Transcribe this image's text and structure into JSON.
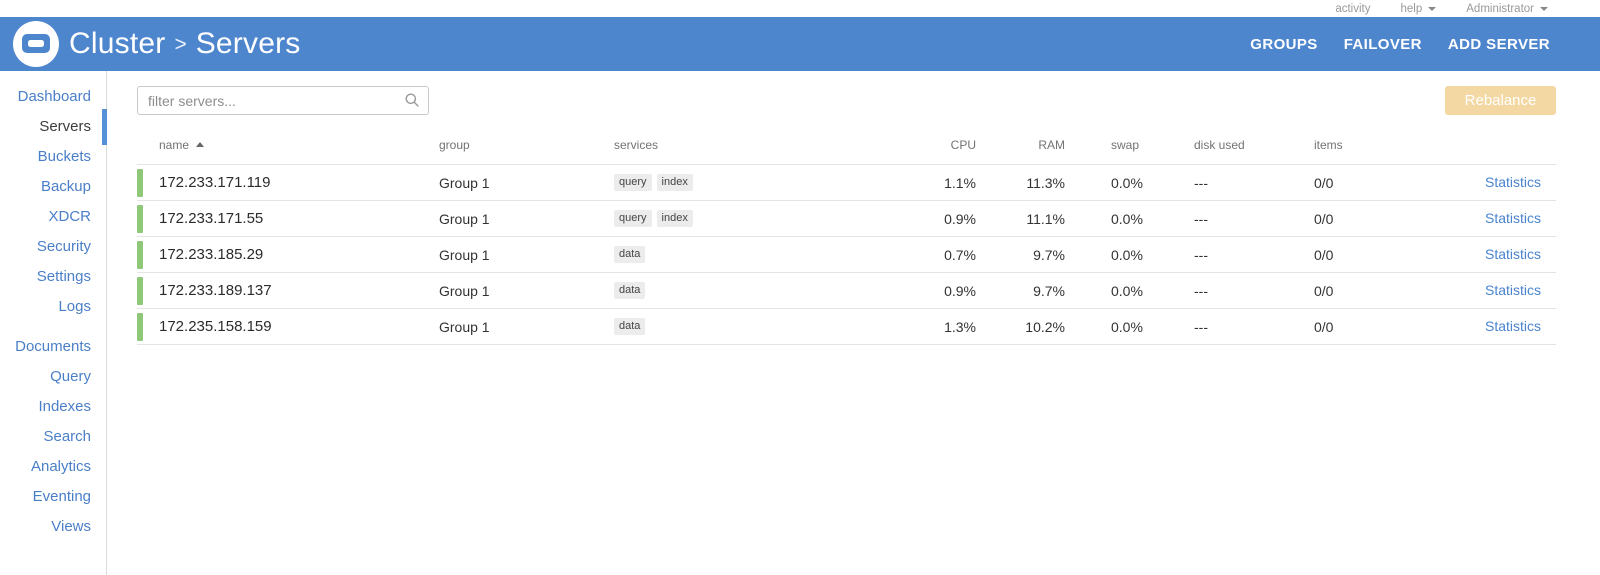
{
  "topbar": {
    "items": [
      {
        "label": "activity",
        "caret": false
      },
      {
        "label": "help",
        "caret": true
      },
      {
        "label": "Administrator",
        "caret": true
      }
    ]
  },
  "header": {
    "breadcrumb": {
      "parent": "Cluster",
      "separator": ">",
      "current": "Servers"
    },
    "actions": [
      {
        "label": "GROUPS"
      },
      {
        "label": "FAILOVER"
      },
      {
        "label": "ADD SERVER"
      }
    ]
  },
  "sidebar": {
    "primary": [
      {
        "label": "Dashboard",
        "active": false
      },
      {
        "label": "Servers",
        "active": true
      },
      {
        "label": "Buckets",
        "active": false
      },
      {
        "label": "Backup",
        "active": false
      },
      {
        "label": "XDCR",
        "active": false
      },
      {
        "label": "Security",
        "active": false
      },
      {
        "label": "Settings",
        "active": false
      },
      {
        "label": "Logs",
        "active": false
      }
    ],
    "secondary": [
      {
        "label": "Documents"
      },
      {
        "label": "Query"
      },
      {
        "label": "Indexes"
      },
      {
        "label": "Search"
      },
      {
        "label": "Analytics"
      },
      {
        "label": "Eventing"
      },
      {
        "label": "Views"
      }
    ]
  },
  "toolbar": {
    "filter_placeholder": "filter servers...",
    "rebalance_label": "Rebalance",
    "rebalance_disabled": true
  },
  "table": {
    "columns": [
      {
        "key": "name",
        "label": "name",
        "sortable": true,
        "sort": "asc"
      },
      {
        "key": "group",
        "label": "group"
      },
      {
        "key": "services",
        "label": "services"
      },
      {
        "key": "cpu",
        "label": "CPU",
        "align": "right"
      },
      {
        "key": "ram",
        "label": "RAM",
        "align": "right"
      },
      {
        "key": "swap",
        "label": "swap"
      },
      {
        "key": "disk_used",
        "label": "disk used"
      },
      {
        "key": "items",
        "label": "items"
      }
    ],
    "rows": [
      {
        "name": "172.233.171.119",
        "group": "Group 1",
        "services": [
          "query",
          "index"
        ],
        "cpu": "1.1%",
        "ram": "11.3%",
        "swap": "0.0%",
        "disk_used": "---",
        "items": "0/0",
        "link": "Statistics",
        "status": "healthy"
      },
      {
        "name": "172.233.171.55",
        "group": "Group 1",
        "services": [
          "query",
          "index"
        ],
        "cpu": "0.9%",
        "ram": "11.1%",
        "swap": "0.0%",
        "disk_used": "---",
        "items": "0/0",
        "link": "Statistics",
        "status": "healthy"
      },
      {
        "name": "172.233.185.29",
        "group": "Group 1",
        "services": [
          "data"
        ],
        "cpu": "0.7%",
        "ram": "9.7%",
        "swap": "0.0%",
        "disk_used": "---",
        "items": "0/0",
        "link": "Statistics",
        "status": "healthy"
      },
      {
        "name": "172.233.189.137",
        "group": "Group 1",
        "services": [
          "data"
        ],
        "cpu": "0.9%",
        "ram": "9.7%",
        "swap": "0.0%",
        "disk_used": "---",
        "items": "0/0",
        "link": "Statistics",
        "status": "healthy"
      },
      {
        "name": "172.235.158.159",
        "group": "Group 1",
        "services": [
          "data"
        ],
        "cpu": "1.3%",
        "ram": "10.2%",
        "swap": "0.0%",
        "disk_used": "---",
        "items": "0/0",
        "link": "Statistics",
        "status": "healthy"
      }
    ]
  },
  "colors": {
    "header_blue": "#4e86ce",
    "link_blue": "#4a84cf",
    "status_green": "#8fc878",
    "rebalance_disabled_bg": "#f3d8a3"
  }
}
